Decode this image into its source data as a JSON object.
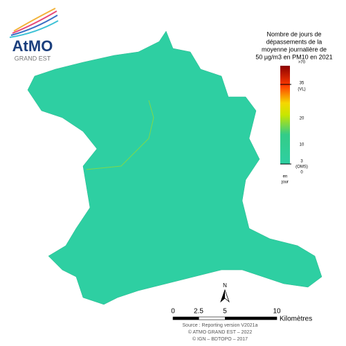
{
  "logo": {
    "name": "AtMO",
    "region": "GRAND EST"
  },
  "legend": {
    "title": [
      "Nombre de jours de",
      "dépassements de la",
      "moyenne journalière de",
      "50 µg/m3 en PM10 en 2021"
    ],
    "ticks": [
      ">70",
      "35",
      "(VL)",
      "20",
      "10",
      "3",
      "(OMS)",
      "0"
    ],
    "unit": [
      "en",
      "jour"
    ]
  },
  "north_arrow": "N",
  "scale_bar": {
    "labels": [
      "0",
      "2.5",
      "5",
      "10"
    ],
    "unit": "Kilomètres"
  },
  "source": [
    "Source : Reporting version V2021a",
    "© ATMO GRAND EST – 2022",
    "© IGN – BDTOPO – 2017"
  ]
}
